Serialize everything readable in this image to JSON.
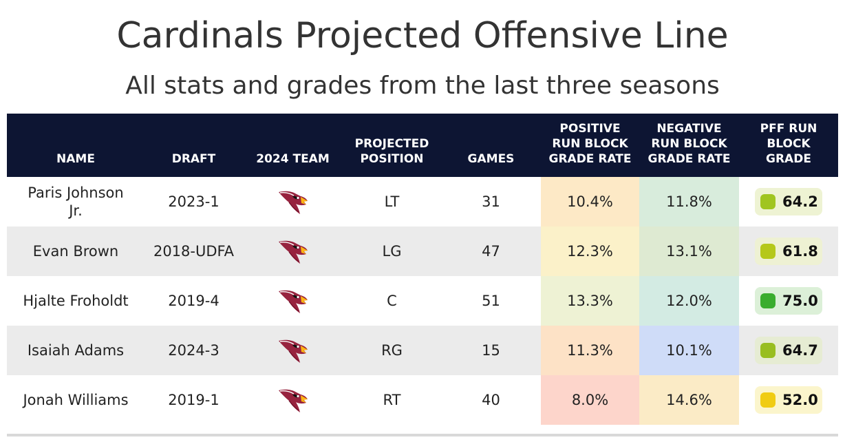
{
  "title": "Cardinals Projected Offensive Line",
  "subtitle": "All stats and grades from the last three seasons",
  "headers": {
    "name": "NAME",
    "draft": "DRAFT",
    "team": "2024 TEAM",
    "position": "PROJECTED\nPOSITION",
    "games": "GAMES",
    "positive": "POSITIVE\nRUN BLOCK\nGRADE RATE",
    "negative": "NEGATIVE\nRUN BLOCK\nGRADE RATE",
    "grade": "PFF RUN\nBLOCK\nGRADE"
  },
  "colors": {
    "header_bg": "#0d1533",
    "row_alt_bg": "#ebebeb",
    "cardinals_red": "#97233f",
    "beak_yellow": "#ffb612"
  },
  "team_icon": "arizona-cardinals-logo-icon",
  "rows": [
    {
      "name": "Paris Johnson\nJr.",
      "draft": "2023-1",
      "position": "LT",
      "games": "31",
      "positive": "10.4%",
      "positive_bg": "#fde9c6",
      "negative": "11.8%",
      "negative_bg": "#d8ecdc",
      "grade": "64.2",
      "grade_color": "#a0c520",
      "grade_bg": "#eef3d3"
    },
    {
      "name": "Evan Brown",
      "draft": "2018-UDFA",
      "position": "LG",
      "games": "47",
      "positive": "12.3%",
      "positive_bg": "#fbf1c9",
      "negative": "13.1%",
      "negative_bg": "#deead2",
      "grade": "61.8",
      "grade_color": "#b5c81a",
      "grade_bg": "#eef1d3"
    },
    {
      "name": "Hjalte Froholdt",
      "draft": "2019-4",
      "position": "C",
      "games": "51",
      "positive": "13.3%",
      "positive_bg": "#eef2d4",
      "negative": "12.0%",
      "negative_bg": "#d3ebe3",
      "grade": "75.0",
      "grade_color": "#3aad2e",
      "grade_bg": "#dcf0d8"
    },
    {
      "name": "Isaiah Adams",
      "draft": "2024-3",
      "position": "RG",
      "games": "15",
      "positive": "11.3%",
      "positive_bg": "#fde2c6",
      "negative": "10.1%",
      "negative_bg": "#cfdcf8",
      "grade": "64.7",
      "grade_color": "#98be20",
      "grade_bg": "#e6ecd3"
    },
    {
      "name": "Jonah Williams",
      "draft": "2019-1",
      "position": "RT",
      "games": "40",
      "positive": "8.0%",
      "positive_bg": "#fdd5cb",
      "negative": "14.6%",
      "negative_bg": "#fbebc6",
      "grade": "52.0",
      "grade_color": "#f0cc13",
      "grade_bg": "#fbf5cc"
    }
  ]
}
